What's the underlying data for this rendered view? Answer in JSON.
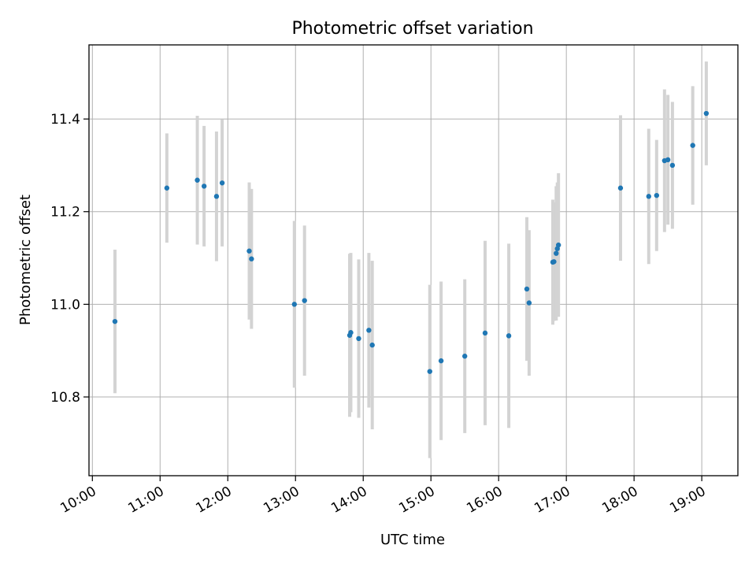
{
  "chart_data": {
    "type": "scatter",
    "title": "Photometric offset variation",
    "xlabel": "UTC time",
    "ylabel": "Photometric offset",
    "x_ticks": [
      "10:00",
      "11:00",
      "12:00",
      "13:00",
      "14:00",
      "15:00",
      "16:00",
      "17:00",
      "18:00",
      "19:00"
    ],
    "x_range": [
      "09:57",
      "19:32"
    ],
    "y_ticks": [
      "10.8",
      "11.0",
      "11.2",
      "11.4"
    ],
    "ylim": [
      10.63,
      11.56
    ],
    "grid": true,
    "legend": "none",
    "marker_color": "#1f77b4",
    "errorbar_color": "#d3d3d3",
    "points": [
      {
        "time": "10:20",
        "offset": 10.963,
        "err": 0.155
      },
      {
        "time": "11:06",
        "offset": 11.251,
        "err": 0.118
      },
      {
        "time": "11:33",
        "offset": 11.268,
        "err": 0.139
      },
      {
        "time": "11:39",
        "offset": 11.255,
        "err": 0.13
      },
      {
        "time": "11:50",
        "offset": 11.233,
        "err": 0.14
      },
      {
        "time": "11:55",
        "offset": 11.262,
        "err": 0.137
      },
      {
        "time": "12:19",
        "offset": 11.115,
        "err": 0.148
      },
      {
        "time": "12:21",
        "offset": 11.098,
        "err": 0.151
      },
      {
        "time": "12:59",
        "offset": 11.0,
        "err": 0.18
      },
      {
        "time": "13:08",
        "offset": 11.008,
        "err": 0.162
      },
      {
        "time": "13:48",
        "offset": 10.933,
        "err": 0.176
      },
      {
        "time": "13:49",
        "offset": 10.939,
        "err": 0.172
      },
      {
        "time": "13:56",
        "offset": 10.926,
        "err": 0.171
      },
      {
        "time": "14:05",
        "offset": 10.944,
        "err": 0.167
      },
      {
        "time": "14:08",
        "offset": 10.912,
        "err": 0.182
      },
      {
        "time": "14:59",
        "offset": 10.855,
        "err": 0.187
      },
      {
        "time": "15:09",
        "offset": 10.878,
        "err": 0.171
      },
      {
        "time": "15:30",
        "offset": 10.888,
        "err": 0.166
      },
      {
        "time": "15:48",
        "offset": 10.938,
        "err": 0.199
      },
      {
        "time": "16:09",
        "offset": 10.932,
        "err": 0.199
      },
      {
        "time": "16:25",
        "offset": 11.033,
        "err": 0.155
      },
      {
        "time": "16:27",
        "offset": 11.003,
        "err": 0.157
      },
      {
        "time": "16:48",
        "offset": 11.091,
        "err": 0.135
      },
      {
        "time": "16:49",
        "offset": 11.092,
        "err": 0.128
      },
      {
        "time": "16:51",
        "offset": 11.11,
        "err": 0.145
      },
      {
        "time": "16:52",
        "offset": 11.12,
        "err": 0.143
      },
      {
        "time": "16:53",
        "offset": 11.128,
        "err": 0.155
      },
      {
        "time": "17:48",
        "offset": 11.251,
        "err": 0.157
      },
      {
        "time": "18:13",
        "offset": 11.233,
        "err": 0.146
      },
      {
        "time": "18:20",
        "offset": 11.235,
        "err": 0.12
      },
      {
        "time": "18:27",
        "offset": 11.31,
        "err": 0.154
      },
      {
        "time": "18:30",
        "offset": 11.312,
        "err": 0.14
      },
      {
        "time": "18:34",
        "offset": 11.3,
        "err": 0.137
      },
      {
        "time": "18:52",
        "offset": 11.343,
        "err": 0.128
      },
      {
        "time": "19:04",
        "offset": 11.412,
        "err": 0.112
      }
    ]
  }
}
